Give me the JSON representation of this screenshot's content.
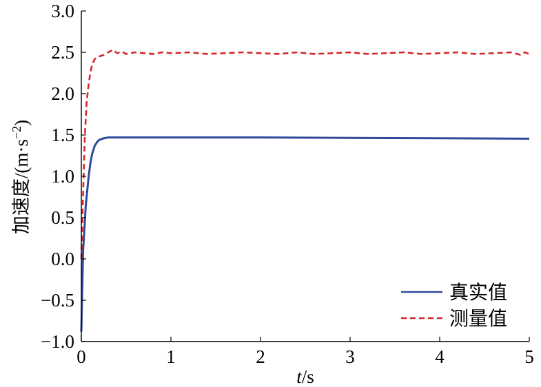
{
  "chart_data": {
    "type": "line",
    "xlabel_italic": "t",
    "xlabel_rest": "/s",
    "ylabel_main": "加速度/(m·s",
    "ylabel_sup": "−2",
    "ylabel_close": ")",
    "xlim": [
      0,
      5
    ],
    "ylim": [
      -1.0,
      3.0
    ],
    "xticks": [
      0,
      1,
      2,
      3,
      4,
      5
    ],
    "xtick_labels": [
      "0",
      "1",
      "2",
      "3",
      "4",
      "5"
    ],
    "yticks": [
      -1.0,
      -0.5,
      0.0,
      0.5,
      1.0,
      1.5,
      2.0,
      2.5,
      3.0
    ],
    "ytick_labels": [
      "−1.0",
      "−0.5",
      "0.0",
      "0.5",
      "1.0",
      "1.5",
      "2.0",
      "2.5",
      "3.0"
    ],
    "grid": false,
    "legend_position": "bottom-right",
    "series": [
      {
        "name": "真实值",
        "color": "#2f4a9b",
        "style": "solid",
        "x": [
          0,
          0.02,
          0.05,
          0.08,
          0.1,
          0.12,
          0.15,
          0.18,
          0.2,
          0.25,
          0.3,
          0.4,
          0.6,
          1.0,
          2.0,
          3.0,
          4.0,
          5.0
        ],
        "y": [
          -0.88,
          0.1,
          0.65,
          0.98,
          1.15,
          1.27,
          1.37,
          1.42,
          1.44,
          1.46,
          1.47,
          1.47,
          1.47,
          1.47,
          1.47,
          1.465,
          1.46,
          1.455
        ]
      },
      {
        "name": "测量值",
        "color": "#d7262b",
        "style": "dashed",
        "x": [
          0,
          0.02,
          0.04,
          0.06,
          0.08,
          0.1,
          0.12,
          0.15,
          0.18,
          0.2,
          0.25,
          0.3,
          0.35,
          0.4,
          0.45,
          0.5,
          0.6,
          0.7,
          0.8,
          0.9,
          1.0,
          1.2,
          1.4,
          1.6,
          1.8,
          2.0,
          2.2,
          2.4,
          2.6,
          2.8,
          3.0,
          3.2,
          3.4,
          3.6,
          3.8,
          4.0,
          4.2,
          4.4,
          4.6,
          4.8,
          4.9,
          4.95,
          5.0
        ],
        "y": [
          0.0,
          0.8,
          1.5,
          1.9,
          2.1,
          2.25,
          2.35,
          2.42,
          2.44,
          2.45,
          2.47,
          2.5,
          2.53,
          2.49,
          2.51,
          2.48,
          2.5,
          2.49,
          2.48,
          2.5,
          2.49,
          2.5,
          2.48,
          2.49,
          2.5,
          2.49,
          2.48,
          2.5,
          2.48,
          2.49,
          2.5,
          2.48,
          2.49,
          2.5,
          2.48,
          2.49,
          2.5,
          2.48,
          2.49,
          2.5,
          2.47,
          2.5,
          2.48
        ]
      }
    ]
  }
}
